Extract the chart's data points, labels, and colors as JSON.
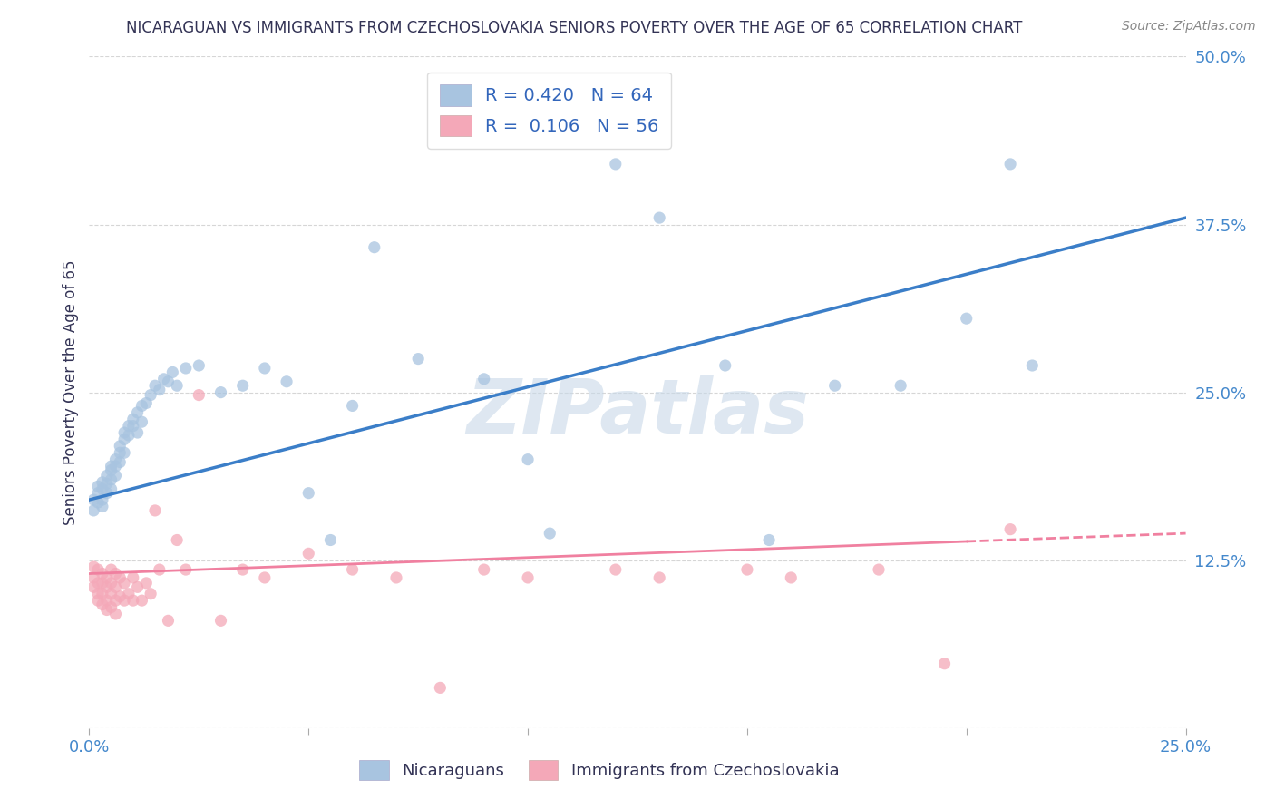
{
  "title": "NICARAGUAN VS IMMIGRANTS FROM CZECHOSLOVAKIA SENIORS POVERTY OVER THE AGE OF 65 CORRELATION CHART",
  "source": "Source: ZipAtlas.com",
  "ylabel": "Seniors Poverty Over the Age of 65",
  "xlim": [
    0.0,
    0.25
  ],
  "ylim": [
    0.0,
    0.5
  ],
  "legend_label1": "R = 0.420   N = 64",
  "legend_label2": "R =  0.106   N = 56",
  "series1_label": "Nicaraguans",
  "series2_label": "Immigrants from Czechoslovakia",
  "color1": "#A8C4E0",
  "color2": "#F4A8B8",
  "trendline1_color": "#3B7EC8",
  "trendline2_color": "#F080A0",
  "background_color": "#FFFFFF",
  "grid_color": "#CCCCCC",
  "title_color": "#333355",
  "watermark": "ZIPatlas",
  "trendline1_slope": 0.84,
  "trendline1_intercept": 0.17,
  "trendline2_slope": 0.12,
  "trendline2_intercept": 0.115,
  "blue_x": [
    0.001,
    0.001,
    0.002,
    0.002,
    0.002,
    0.003,
    0.003,
    0.003,
    0.003,
    0.004,
    0.004,
    0.004,
    0.005,
    0.005,
    0.005,
    0.005,
    0.006,
    0.006,
    0.006,
    0.007,
    0.007,
    0.007,
    0.008,
    0.008,
    0.008,
    0.009,
    0.009,
    0.01,
    0.01,
    0.011,
    0.011,
    0.012,
    0.012,
    0.013,
    0.014,
    0.015,
    0.016,
    0.017,
    0.018,
    0.019,
    0.02,
    0.022,
    0.025,
    0.03,
    0.035,
    0.04,
    0.045,
    0.05,
    0.055,
    0.06,
    0.065,
    0.075,
    0.09,
    0.1,
    0.105,
    0.12,
    0.13,
    0.145,
    0.155,
    0.17,
    0.185,
    0.2,
    0.21,
    0.215
  ],
  "blue_y": [
    0.17,
    0.162,
    0.175,
    0.168,
    0.18,
    0.178,
    0.183,
    0.17,
    0.165,
    0.188,
    0.175,
    0.182,
    0.195,
    0.185,
    0.178,
    0.192,
    0.2,
    0.188,
    0.195,
    0.21,
    0.198,
    0.205,
    0.215,
    0.205,
    0.22,
    0.218,
    0.225,
    0.225,
    0.23,
    0.235,
    0.22,
    0.24,
    0.228,
    0.242,
    0.248,
    0.255,
    0.252,
    0.26,
    0.258,
    0.265,
    0.255,
    0.268,
    0.27,
    0.25,
    0.255,
    0.268,
    0.258,
    0.175,
    0.14,
    0.24,
    0.358,
    0.275,
    0.26,
    0.2,
    0.145,
    0.42,
    0.38,
    0.27,
    0.14,
    0.255,
    0.255,
    0.305,
    0.42,
    0.27
  ],
  "pink_x": [
    0.001,
    0.001,
    0.001,
    0.002,
    0.002,
    0.002,
    0.002,
    0.003,
    0.003,
    0.003,
    0.003,
    0.004,
    0.004,
    0.004,
    0.004,
    0.005,
    0.005,
    0.005,
    0.005,
    0.006,
    0.006,
    0.006,
    0.006,
    0.007,
    0.007,
    0.008,
    0.008,
    0.009,
    0.01,
    0.01,
    0.011,
    0.012,
    0.013,
    0.014,
    0.015,
    0.016,
    0.018,
    0.02,
    0.022,
    0.025,
    0.03,
    0.035,
    0.04,
    0.05,
    0.06,
    0.07,
    0.08,
    0.09,
    0.1,
    0.12,
    0.13,
    0.15,
    0.16,
    0.18,
    0.195,
    0.21
  ],
  "pink_y": [
    0.12,
    0.112,
    0.105,
    0.118,
    0.108,
    0.1,
    0.095,
    0.115,
    0.108,
    0.1,
    0.092,
    0.112,
    0.105,
    0.095,
    0.088,
    0.118,
    0.108,
    0.1,
    0.09,
    0.115,
    0.105,
    0.095,
    0.085,
    0.112,
    0.098,
    0.108,
    0.095,
    0.1,
    0.112,
    0.095,
    0.105,
    0.095,
    0.108,
    0.1,
    0.162,
    0.118,
    0.08,
    0.14,
    0.118,
    0.248,
    0.08,
    0.118,
    0.112,
    0.13,
    0.118,
    0.112,
    0.03,
    0.118,
    0.112,
    0.118,
    0.112,
    0.118,
    0.112,
    0.118,
    0.048,
    0.148
  ]
}
